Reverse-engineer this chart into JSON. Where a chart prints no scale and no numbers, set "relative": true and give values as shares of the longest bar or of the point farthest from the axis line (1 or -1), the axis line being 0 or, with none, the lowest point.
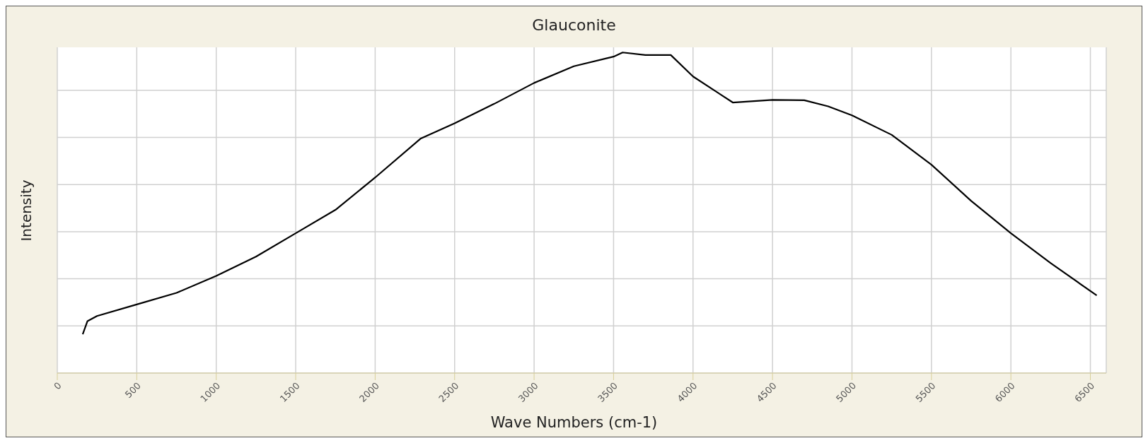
{
  "chart_data": {
    "type": "line",
    "title": "Glauconite",
    "xlabel": "Wave Numbers (cm-1)",
    "ylabel": "Intensity",
    "relative": true,
    "xlim": [
      0,
      6600
    ],
    "xticks": [
      0,
      500,
      1000,
      1500,
      2000,
      2500,
      3000,
      3500,
      4000,
      4500,
      5000,
      5500,
      6000,
      6500
    ],
    "grid": true,
    "legend": false,
    "marker": "none",
    "line_style": "solid",
    "x": [
      160,
      190,
      250,
      500,
      750,
      1000,
      1250,
      1500,
      1750,
      2000,
      2285,
      2500,
      2750,
      3000,
      3250,
      3500,
      3557,
      3700,
      3860,
      4000,
      4250,
      4500,
      4700,
      4850,
      5000,
      5250,
      5500,
      5750,
      6000,
      6250,
      6540
    ],
    "series": [
      {
        "color": "#000000",
        "values": [
          0.121,
          0.162,
          0.178,
          0.214,
          0.25,
          0.303,
          0.363,
          0.436,
          0.509,
          0.61,
          0.731,
          0.779,
          0.84,
          0.905,
          0.957,
          0.987,
          1.0,
          0.992,
          0.992,
          0.925,
          0.844,
          0.852,
          0.851,
          0.832,
          0.804,
          0.743,
          0.65,
          0.537,
          0.436,
          0.343,
          0.242
        ]
      }
    ]
  }
}
